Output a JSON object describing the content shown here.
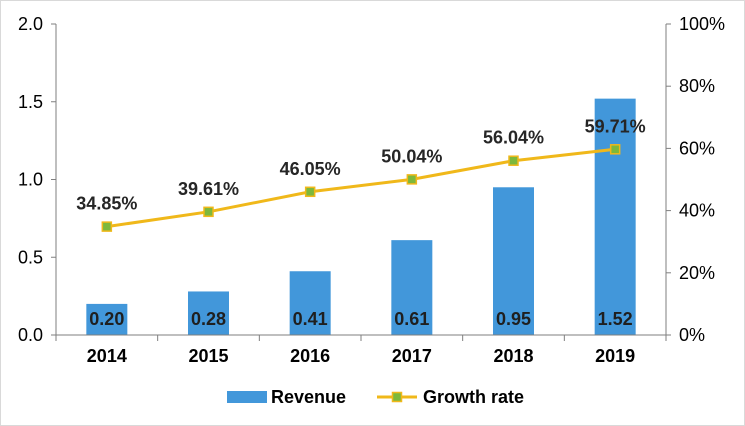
{
  "chart_data": {
    "type": "bar",
    "title": "",
    "categories": [
      "2014",
      "2015",
      "2016",
      "2017",
      "2018",
      "2019"
    ],
    "series": [
      {
        "name": "Revenue",
        "kind": "bar",
        "axis": "left",
        "values": [
          0.2,
          0.28,
          0.41,
          0.61,
          0.95,
          1.52
        ],
        "labels": [
          "0.20",
          "0.28",
          "0.41",
          "0.61",
          "0.95",
          "1.52"
        ],
        "color": "#4297DA"
      },
      {
        "name": "Growth rate",
        "kind": "line",
        "axis": "right",
        "values": [
          34.85,
          39.61,
          46.05,
          50.04,
          56.04,
          59.71
        ],
        "labels": [
          "34.85%",
          "39.61%",
          "46.05%",
          "50.04%",
          "56.04%",
          "59.71%"
        ],
        "color": "#F0B81A",
        "marker_color": "#7DB83C"
      }
    ],
    "y_left": {
      "ylim": [
        0,
        2.0
      ],
      "ticks": [
        "0.0",
        "0.5",
        "1.0",
        "1.5",
        "2.0"
      ],
      "tick_values": [
        0,
        0.5,
        1.0,
        1.5,
        2.0
      ]
    },
    "y_right": {
      "ylim": [
        0,
        100
      ],
      "ticks": [
        "0%",
        "20%",
        "40%",
        "60%",
        "80%",
        "100%"
      ],
      "tick_values": [
        0,
        20,
        40,
        60,
        80,
        100
      ]
    },
    "xlabel": "",
    "ylabel": "",
    "grid": false,
    "legend": {
      "position": "bottom",
      "entries": [
        "Revenue",
        "Growth rate"
      ]
    }
  }
}
